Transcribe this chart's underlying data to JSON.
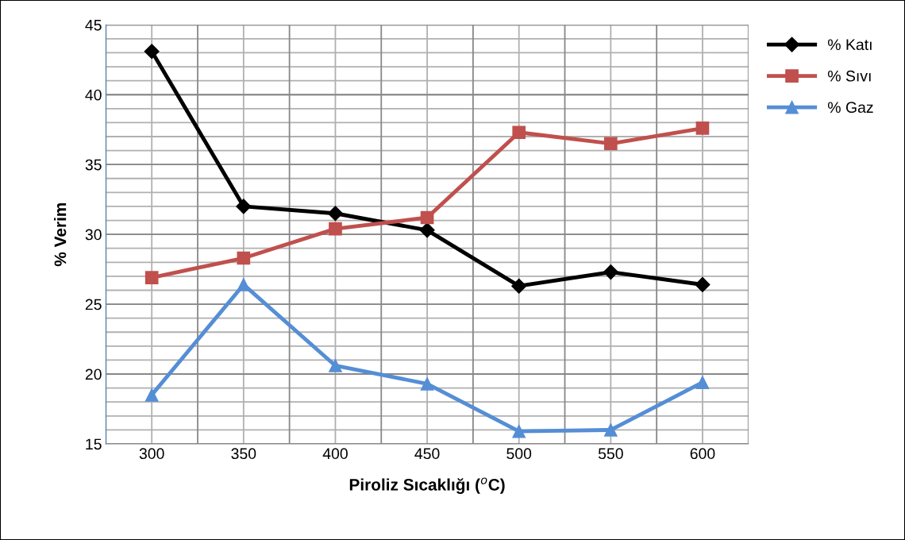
{
  "chart_data": {
    "type": "line",
    "xlabel": "Piroliz Sıcaklığı ($^{o}$C)",
    "ylabel": "% Verim",
    "categories": [
      "300",
      "350",
      "400",
      "450",
      "500",
      "550",
      "600"
    ],
    "series": [
      {
        "name": "% Katı",
        "color": "#000000",
        "marker": "diamond",
        "values": [
          43.1,
          32.0,
          31.5,
          30.3,
          26.3,
          27.3,
          26.4
        ]
      },
      {
        "name": "% Sıvı",
        "color": "#c0504d",
        "marker": "square",
        "values": [
          26.9,
          28.3,
          30.4,
          31.2,
          37.3,
          36.5,
          37.6
        ]
      },
      {
        "name": "% Gaz",
        "color": "#558ed5",
        "marker": "triangle",
        "values": [
          18.5,
          26.4,
          20.6,
          19.3,
          15.9,
          16.0,
          19.4
        ]
      }
    ],
    "ylim": [
      15,
      45
    ],
    "yticks": [
      15,
      20,
      25,
      30,
      35,
      40,
      45
    ],
    "grid": true,
    "legend": "right",
    "line_style": "solid"
  }
}
